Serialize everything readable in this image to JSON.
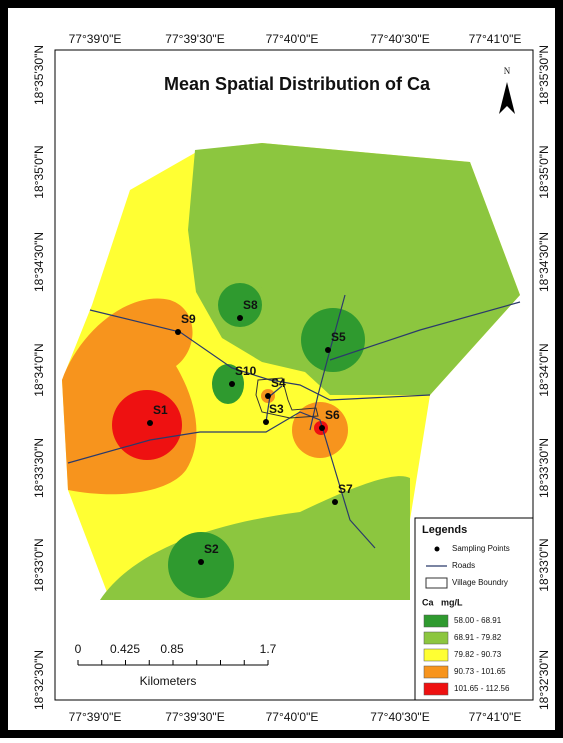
{
  "title": "Mean Spatial Distribution of Ca",
  "north": "N",
  "longitude_labels": [
    "77°39'0\"E",
    "77°39'30\"E",
    "77°40'0\"E",
    "77°40'30\"E",
    "77°41'0\"E"
  ],
  "latitude_labels": [
    "18°35'30\"N",
    "18°35'0\"N",
    "18°34'30\"N",
    "18°34'0\"N",
    "18°33'30\"N",
    "18°33'0\"N",
    "18°32'30\"N"
  ],
  "sampling_points": [
    "S1",
    "S2",
    "S3",
    "S4",
    "S5",
    "S6",
    "S7",
    "S8",
    "S9",
    "S10"
  ],
  "scale_bar": {
    "ticks": [
      "0",
      "0.425",
      "0.85",
      "1.7"
    ],
    "unit": "Kilometers"
  },
  "legend": {
    "title": "Legends",
    "items": [
      "Sampling Points",
      "Roads",
      "Village Boundry"
    ],
    "class_title": "Ca   mg/L",
    "classes": [
      {
        "label": "58.00 - 68.91",
        "color": "#2f9a2f"
      },
      {
        "label": "68.91 - 79.82",
        "color": "#8cc63f"
      },
      {
        "label": "79.82 - 90.73",
        "color": "#ffff33"
      },
      {
        "label": "90.73 - 101.65",
        "color": "#f7941d"
      },
      {
        "label": "101.65 - 112.56",
        "color": "#ee1111"
      }
    ]
  }
}
